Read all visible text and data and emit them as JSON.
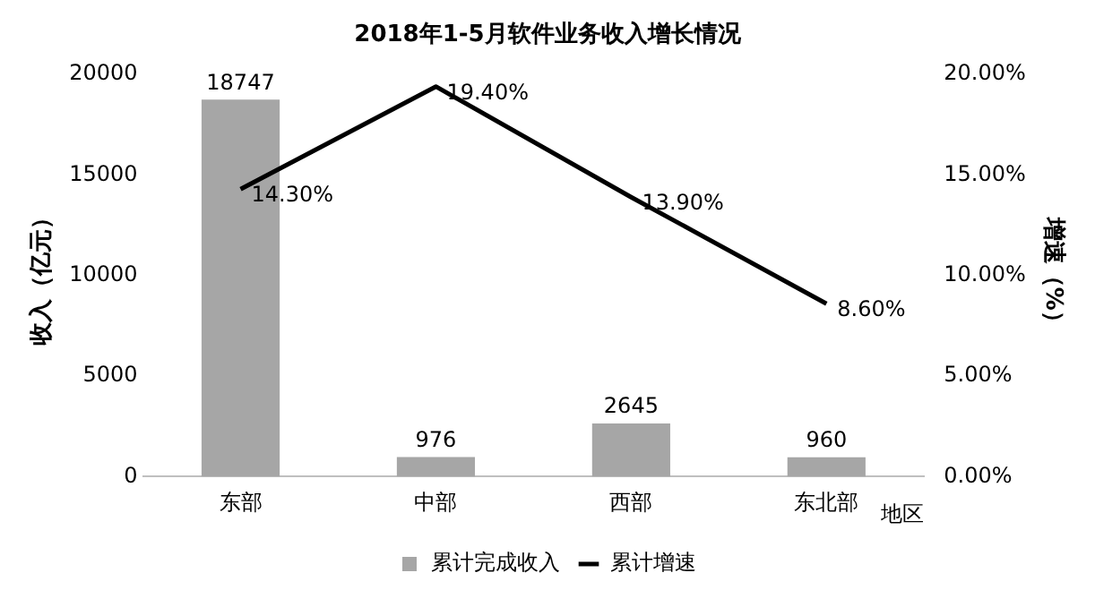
{
  "chart_data": {
    "type": "bar",
    "title": "2018年1-5月软件业务收入增长情况",
    "xlabel": "地区",
    "ylabel": "收入（亿元）",
    "y2label": "增速（%）",
    "categories": [
      "东部",
      "中部",
      "西部",
      "东北部"
    ],
    "series": [
      {
        "name": "累计完成收入",
        "color": "#a6a6a6",
        "values": [
          18747,
          976,
          2645,
          960
        ],
        "value_labels": [
          "18747",
          "976",
          "2645",
          "960"
        ]
      },
      {
        "name": "累计增速",
        "type": "line",
        "axis": "y2",
        "color": "#000000",
        "values": [
          14.3,
          19.4,
          13.9,
          8.6
        ],
        "value_labels": [
          "14.30%",
          "19.40%",
          "13.90%",
          "8.60%"
        ]
      }
    ],
    "ylim": [
      0,
      20000
    ],
    "yticks": [
      0,
      5000,
      10000,
      15000,
      20000
    ],
    "y2lim": [
      0,
      20
    ],
    "y2ticks": [
      {
        "value": 0,
        "label": "0.00%"
      },
      {
        "value": 5,
        "label": "5.00%"
      },
      {
        "value": 10,
        "label": "10.00%"
      },
      {
        "value": 15,
        "label": "15.00%"
      },
      {
        "value": 20,
        "label": "20.00%"
      }
    ],
    "grid": false,
    "legend": "bottom",
    "marker": "none",
    "line_style": "solid"
  }
}
